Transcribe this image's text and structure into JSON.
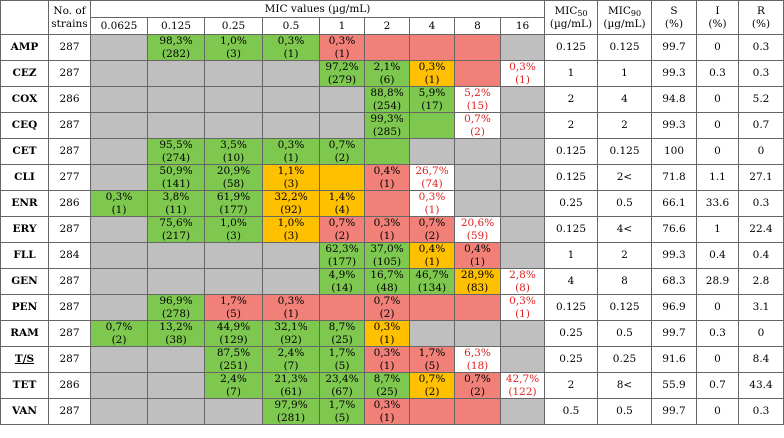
{
  "headers": {
    "strains_line1": "No. of",
    "strains_line2": "strains",
    "mic_values": "MIC values (µg/mL)",
    "concentrations": [
      "0.0625",
      "0.125",
      "0.25",
      "0.5",
      "1",
      "2",
      "4",
      "8",
      "16"
    ],
    "mic50": "MIC",
    "mic50_sub": "50",
    "mic90": "MIC",
    "mic90_sub": "90",
    "unit": "(µg/mL)",
    "s": "S",
    "i": "I",
    "r": "R",
    "pct": "(%)"
  },
  "colors": {
    "green": "#7ec850",
    "orange": "#ffc000",
    "red": "#f08078",
    "grey": "#bfbfbf",
    "red_text": "#e02020"
  },
  "rows": [
    {
      "ab": "AMP",
      "n": "287",
      "cells": [
        {
          "c": "e"
        },
        {
          "c": "g",
          "t": "98,3% (282)"
        },
        {
          "c": "g",
          "t": "1,0% (3)"
        },
        {
          "c": "g",
          "t": "0,3% (1)"
        },
        {
          "c": "r",
          "t": "0,3% (1)"
        },
        {
          "c": "r"
        },
        {
          "c": "r"
        },
        {
          "c": "r"
        },
        {
          "c": "e"
        }
      ],
      "mic50": "0.125",
      "mic90": "0.125",
      "s": "99.7",
      "i": "0",
      "r": "0.3"
    },
    {
      "ab": "CEZ",
      "n": "287",
      "cells": [
        {
          "c": "e"
        },
        {
          "c": "e"
        },
        {
          "c": "e"
        },
        {
          "c": "e"
        },
        {
          "c": "g",
          "t": "97,2% (279)"
        },
        {
          "c": "g",
          "t": "2,1% (6)"
        },
        {
          "c": "o",
          "t": "0,3% (1)"
        },
        {
          "c": "r"
        },
        {
          "c": "w",
          "t": "0,3% (1)",
          "red": true
        }
      ],
      "mic50": "1",
      "mic90": "1",
      "s": "99.3",
      "i": "0.3",
      "r": "0.3"
    },
    {
      "ab": "COX",
      "n": "286",
      "cells": [
        {
          "c": "e"
        },
        {
          "c": "e"
        },
        {
          "c": "e"
        },
        {
          "c": "e"
        },
        {
          "c": "e"
        },
        {
          "c": "g",
          "t": "88,8% (254)"
        },
        {
          "c": "g",
          "t": "5,9% (17)"
        },
        {
          "c": "w",
          "t": "5,2% (15)",
          "red": true
        },
        {
          "c": "e"
        }
      ],
      "mic50": "2",
      "mic90": "4",
      "s": "94.8",
      "i": "0",
      "r": "5.2"
    },
    {
      "ab": "CEQ",
      "n": "287",
      "cells": [
        {
          "c": "e"
        },
        {
          "c": "e"
        },
        {
          "c": "e"
        },
        {
          "c": "e"
        },
        {
          "c": "e"
        },
        {
          "c": "g",
          "t": "99,3% (285)"
        },
        {
          "c": "g"
        },
        {
          "c": "w",
          "t": "0,7% (2)",
          "red": true
        },
        {
          "c": "e"
        }
      ],
      "mic50": "2",
      "mic90": "2",
      "s": "99.3",
      "i": "0",
      "r": "0.7"
    },
    {
      "ab": "CET",
      "n": "287",
      "cells": [
        {
          "c": "e"
        },
        {
          "c": "g",
          "t": "95,5% (274)"
        },
        {
          "c": "g",
          "t": "3,5% (10)"
        },
        {
          "c": "g",
          "t": "0,3% (1)"
        },
        {
          "c": "g",
          "t": "0,7% (2)"
        },
        {
          "c": "g"
        },
        {
          "c": "e"
        },
        {
          "c": "e"
        },
        {
          "c": "e"
        }
      ],
      "mic50": "0.125",
      "mic90": "0.125",
      "s": "100",
      "i": "0",
      "r": "0"
    },
    {
      "ab": "CLI",
      "n": "277",
      "cells": [
        {
          "c": "e"
        },
        {
          "c": "g",
          "t": "50,9% (141)"
        },
        {
          "c": "g",
          "t": "20,9% (58)"
        },
        {
          "c": "o",
          "t": "1,1% (3)"
        },
        {
          "c": "o"
        },
        {
          "c": "r",
          "t": "0,4% (1)"
        },
        {
          "c": "w",
          "t": "26,7% (74)",
          "red": true
        },
        {
          "c": "e"
        },
        {
          "c": "e"
        }
      ],
      "mic50": "0.125",
      "mic90": "2<",
      "s": "71.8",
      "i": "1.1",
      "r": "27.1"
    },
    {
      "ab": "ENR",
      "n": "286",
      "cells": [
        {
          "c": "g",
          "t": "0,3% (1)"
        },
        {
          "c": "g",
          "t": "3,8% (11)"
        },
        {
          "c": "g",
          "t": "61,9% (177)"
        },
        {
          "c": "o",
          "t": "32,2% (92)"
        },
        {
          "c": "o",
          "t": "1,4% (4)"
        },
        {
          "c": "r"
        },
        {
          "c": "w",
          "t": "0,3% (1)",
          "red": true
        },
        {
          "c": "e"
        },
        {
          "c": "e"
        }
      ],
      "mic50": "0.25",
      "mic90": "0.5",
      "s": "66.1",
      "i": "33.6",
      "r": "0.3"
    },
    {
      "ab": "ERY",
      "n": "287",
      "cells": [
        {
          "c": "e"
        },
        {
          "c": "g",
          "t": "75,6% (217)"
        },
        {
          "c": "g",
          "t": "1,0% (3)"
        },
        {
          "c": "o",
          "t": "1,0% (3)"
        },
        {
          "c": "r",
          "t": "0,7% (2)"
        },
        {
          "c": "r",
          "t": "0,3% (1)"
        },
        {
          "c": "r",
          "t": "0,7% (2)"
        },
        {
          "c": "w",
          "t": "20,6% (59)",
          "red": true
        },
        {
          "c": "e"
        }
      ],
      "mic50": "0.125",
      "mic90": "4<",
      "s": "76.6",
      "i": "1",
      "r": "22.4"
    },
    {
      "ab": "FLL",
      "n": "284",
      "cells": [
        {
          "c": "e"
        },
        {
          "c": "e"
        },
        {
          "c": "e"
        },
        {
          "c": "e"
        },
        {
          "c": "g",
          "t": "62,3% (177)"
        },
        {
          "c": "g",
          "t": "37,0% (105)"
        },
        {
          "c": "o",
          "t": "0,4% (1)"
        },
        {
          "c": "r",
          "t": "0,4% (1)"
        },
        {
          "c": "e"
        }
      ],
      "mic50": "1",
      "mic90": "2",
      "s": "99.3",
      "i": "0.4",
      "r": "0.4"
    },
    {
      "ab": "GEN",
      "n": "287",
      "cells": [
        {
          "c": "e"
        },
        {
          "c": "e"
        },
        {
          "c": "e"
        },
        {
          "c": "e"
        },
        {
          "c": "g",
          "t": "4,9% (14)"
        },
        {
          "c": "g",
          "t": "16,7% (48)"
        },
        {
          "c": "g",
          "t": "46,7% (134)"
        },
        {
          "c": "o",
          "t": "28,9% (83)"
        },
        {
          "c": "w",
          "t": "2,8% (8)",
          "red": true
        }
      ],
      "mic50": "4",
      "mic90": "8",
      "s": "68.3",
      "i": "28.9",
      "r": "2.8"
    },
    {
      "ab": "PEN",
      "n": "287",
      "cells": [
        {
          "c": "e"
        },
        {
          "c": "g",
          "t": "96,9% (278)"
        },
        {
          "c": "r",
          "t": "1,7% (5)"
        },
        {
          "c": "r",
          "t": "0,3% (1)"
        },
        {
          "c": "r"
        },
        {
          "c": "r",
          "t": "0,7% (2)"
        },
        {
          "c": "r"
        },
        {
          "c": "r"
        },
        {
          "c": "w",
          "t": "0,3% (1)",
          "red": true
        }
      ],
      "mic50": "0.125",
      "mic90": "0.125",
      "s": "96.9",
      "i": "0",
      "r": "3.1"
    },
    {
      "ab": "RAM",
      "n": "287",
      "cells": [
        {
          "c": "g",
          "t": "0,7% (2)"
        },
        {
          "c": "g",
          "t": "13,2% (38)"
        },
        {
          "c": "g",
          "t": "44,9% (129)"
        },
        {
          "c": "g",
          "t": "32,1% (92)"
        },
        {
          "c": "g",
          "t": "8,7% (25)"
        },
        {
          "c": "o",
          "t": "0,3% (1)"
        },
        {
          "c": "e"
        },
        {
          "c": "e"
        },
        {
          "c": "e"
        }
      ],
      "mic50": "0.25",
      "mic90": "0.5",
      "s": "99.7",
      "i": "0.3",
      "r": "0"
    },
    {
      "ab": "T/S",
      "n": "287",
      "ts": true,
      "cells": [
        {
          "c": "e"
        },
        {
          "c": "e"
        },
        {
          "c": "g",
          "t": "87,5% (251)"
        },
        {
          "c": "g",
          "t": "2,4% (7)"
        },
        {
          "c": "g",
          "t": "1,7% (5)"
        },
        {
          "c": "r",
          "t": "0,3% (1)"
        },
        {
          "c": "r",
          "t": "1,7% (5)"
        },
        {
          "c": "w",
          "t": "6,3% (18)",
          "red": true
        },
        {
          "c": "e"
        }
      ],
      "mic50": "0.25",
      "mic90": "0.25",
      "s": "91.6",
      "i": "0",
      "r": "8.4"
    },
    {
      "ab": "TET",
      "n": "286",
      "cells": [
        {
          "c": "e"
        },
        {
          "c": "e"
        },
        {
          "c": "g",
          "t": "2,4% (7)"
        },
        {
          "c": "g",
          "t": "21,3% (61)"
        },
        {
          "c": "g",
          "t": "23,4% (67)"
        },
        {
          "c": "g",
          "t": "8,7% (25)"
        },
        {
          "c": "o",
          "t": "0,7% (2)"
        },
        {
          "c": "r",
          "t": "0,7% (2)"
        },
        {
          "c": "w",
          "t": "42,7% (122)",
          "red": true
        }
      ],
      "mic50": "2",
      "mic90": "8<",
      "s": "55.9",
      "i": "0.7",
      "r": "43.4"
    },
    {
      "ab": "VAN",
      "n": "287",
      "cells": [
        {
          "c": "e"
        },
        {
          "c": "e"
        },
        {
          "c": "e"
        },
        {
          "c": "g",
          "t": "97,9% (281)"
        },
        {
          "c": "g",
          "t": "1,7% (5)"
        },
        {
          "c": "r",
          "t": "0,3% (1)"
        },
        {
          "c": "r"
        },
        {
          "c": "r"
        },
        {
          "c": "e"
        }
      ],
      "mic50": "0.5",
      "mic90": "0.5",
      "s": "99.7",
      "i": "0",
      "r": "0.3"
    }
  ]
}
